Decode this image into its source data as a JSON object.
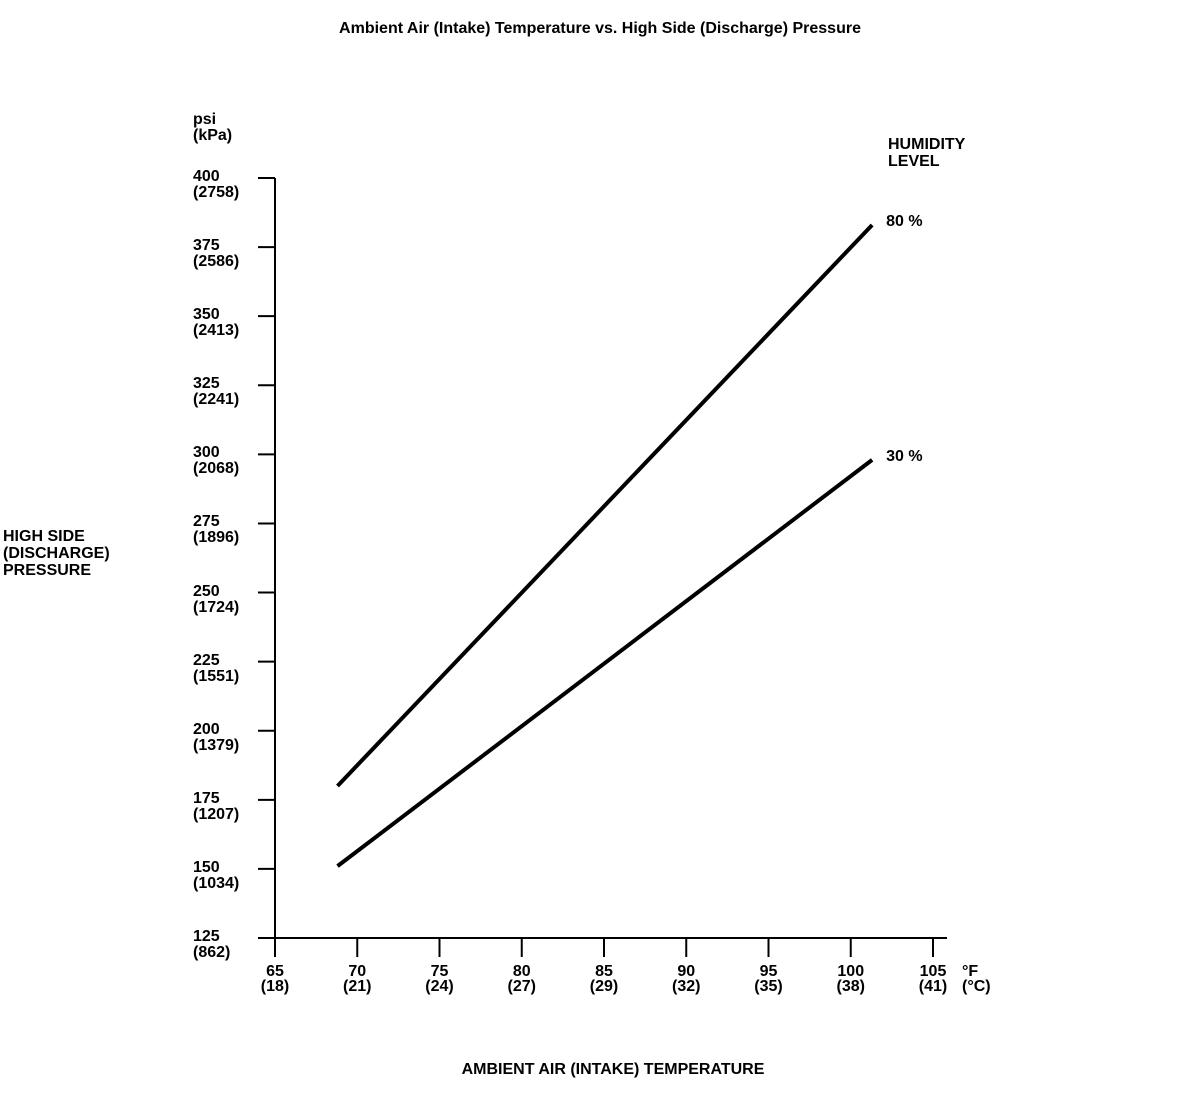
{
  "title": "Ambient Air (Intake) Temperature vs. High Side (Discharge) Pressure",
  "labels": {
    "y_unit_lines": [
      "psi",
      "(kPa)"
    ],
    "x_unit_lines": [
      "°F",
      "(°C)"
    ],
    "y_title_lines": [
      "HIGH SIDE",
      "(DISCHARGE)",
      "PRESSURE"
    ],
    "x_title": "AMBIENT AIR (INTAKE) TEMPERATURE",
    "legend_title_lines": [
      "HUMIDITY",
      "LEVEL"
    ]
  },
  "chart_data": {
    "type": "line",
    "title": "Ambient Air (Intake) Temperature vs. High Side (Discharge) Pressure",
    "xlabel": "AMBIENT AIR (INTAKE) TEMPERATURE",
    "ylabel": "HIGH SIDE (DISCHARGE) PRESSURE",
    "x_unit_primary": "°F",
    "x_unit_secondary": "(°C)",
    "y_unit_primary": "psi",
    "y_unit_secondary": "(kPa)",
    "xlim": [
      65,
      105
    ],
    "ylim": [
      125,
      400
    ],
    "grid": false,
    "legend_title": "HUMIDITY LEVEL",
    "legend_position": "top-right",
    "line_color": "#000000",
    "background_color": "#ffffff",
    "x_ticks": [
      {
        "f": 65,
        "c": 18
      },
      {
        "f": 70,
        "c": 21
      },
      {
        "f": 75,
        "c": 24
      },
      {
        "f": 80,
        "c": 27
      },
      {
        "f": 85,
        "c": 29
      },
      {
        "f": 90,
        "c": 32
      },
      {
        "f": 95,
        "c": 35
      },
      {
        "f": 100,
        "c": 38
      },
      {
        "f": 105,
        "c": 41
      }
    ],
    "y_ticks": [
      {
        "psi": 400,
        "kpa": 2758
      },
      {
        "psi": 375,
        "kpa": 2586
      },
      {
        "psi": 350,
        "kpa": 2413
      },
      {
        "psi": 325,
        "kpa": 2241
      },
      {
        "psi": 300,
        "kpa": 2068
      },
      {
        "psi": 275,
        "kpa": 1896
      },
      {
        "psi": 250,
        "kpa": 1724
      },
      {
        "psi": 225,
        "kpa": 1551
      },
      {
        "psi": 200,
        "kpa": 1379
      },
      {
        "psi": 175,
        "kpa": 1207
      },
      {
        "psi": 150,
        "kpa": 1034
      },
      {
        "psi": 125,
        "kpa": 862
      }
    ],
    "series": [
      {
        "name": "80 %",
        "humidity_percent": 80,
        "points_f_psi": [
          [
            68.8,
            180
          ],
          [
            101.3,
            383
          ]
        ]
      },
      {
        "name": "30 %",
        "humidity_percent": 30,
        "points_f_psi": [
          [
            68.8,
            151
          ],
          [
            101.3,
            298
          ]
        ]
      }
    ]
  }
}
